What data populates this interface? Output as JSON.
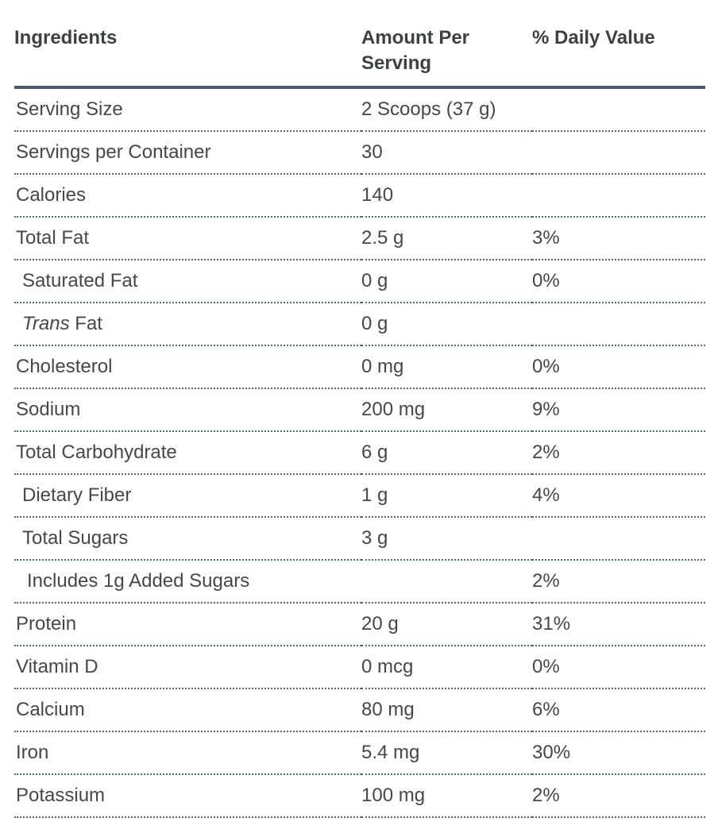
{
  "table": {
    "header": {
      "ingredients": "Ingredients",
      "amount": "Amount Per Serving",
      "daily_value": "% Daily Value"
    },
    "rows": [
      {
        "label": "Serving Size",
        "amount": "2 Scoops (37 g)",
        "dv": "",
        "indent": 0
      },
      {
        "label": "Servings per Container",
        "amount": "30",
        "dv": "",
        "indent": 0
      },
      {
        "label": "Calories",
        "amount": "140",
        "dv": "",
        "indent": 0
      },
      {
        "label": "Total Fat",
        "amount": "2.5 g",
        "dv": "3%",
        "indent": 0
      },
      {
        "label": "Saturated Fat",
        "amount": "0 g",
        "dv": "0%",
        "indent": 1
      },
      {
        "label_italic": "Trans",
        "label": " Fat",
        "amount": "0 g",
        "dv": "",
        "indent": 1
      },
      {
        "label": "Cholesterol",
        "amount": "0 mg",
        "dv": "0%",
        "indent": 0
      },
      {
        "label": "Sodium",
        "amount": "200 mg",
        "dv": "9%",
        "indent": 0
      },
      {
        "label": "Total Carbohydrate",
        "amount": "6 g",
        "dv": "2%",
        "indent": 0
      },
      {
        "label": "Dietary Fiber",
        "amount": "1 g",
        "dv": "4%",
        "indent": 1
      },
      {
        "label": "Total Sugars",
        "amount": "3 g",
        "dv": "",
        "indent": 1
      },
      {
        "label": "Includes 1g Added Sugars",
        "amount": "",
        "dv": "2%",
        "indent": 2
      },
      {
        "label": "Protein",
        "amount": "20 g",
        "dv": "31%",
        "indent": 0
      },
      {
        "label": "Vitamin D",
        "amount": "0 mcg",
        "dv": "0%",
        "indent": 0
      },
      {
        "label": "Calcium",
        "amount": "80 mg",
        "dv": "6%",
        "indent": 0
      },
      {
        "label": "Iron",
        "amount": "5.4 mg",
        "dv": "30%",
        "indent": 0
      },
      {
        "label": "Potassium",
        "amount": "100 mg",
        "dv": "2%",
        "indent": 0
      }
    ]
  },
  "colors": {
    "header_rule": "#4a5a66",
    "row_divider_dotted": "#566572",
    "heading_text": "#3e4143",
    "body_text": "#454748",
    "background": "#ffffff"
  }
}
